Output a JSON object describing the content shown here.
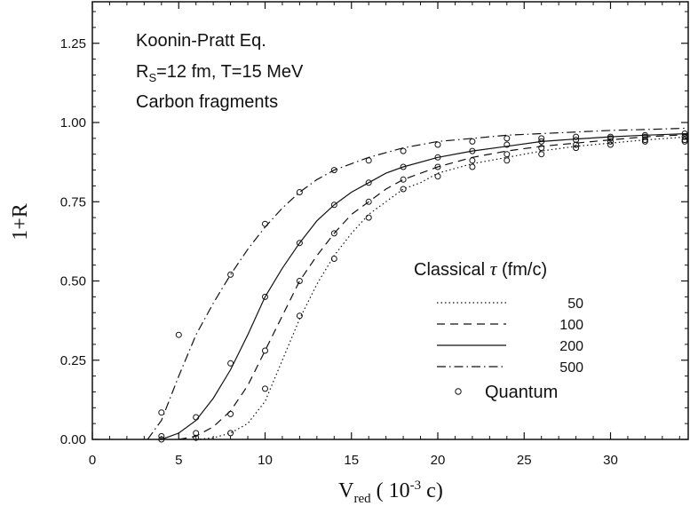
{
  "chart_data": {
    "type": "line",
    "title": "",
    "xlabel": "V",
    "xlabel_sub": "red",
    "xlabel_rest": "( 10",
    "xlabel_exp": "-3",
    "xlabel_tail": " c)",
    "ylabel": "1+R",
    "xlim": [
      0,
      34.5
    ],
    "ylim": [
      0,
      1.4
    ],
    "x_ticks": [
      0,
      5,
      10,
      15,
      20,
      25,
      30
    ],
    "x_tick_labels": [
      "0",
      "5",
      "10",
      "15",
      "20",
      "25",
      "30"
    ],
    "y_ticks": [
      0,
      0.25,
      0.5,
      0.75,
      1.0,
      1.25
    ],
    "y_tick_labels": [
      "0.00",
      "0.25",
      "0.50",
      "0.75",
      "1.00",
      "1.25"
    ],
    "grid": false,
    "annotation": {
      "line1": "Koonin-Pratt Eq.",
      "line2_prefix": "R",
      "line2_sub": "S",
      "line2_rest": "=12 fm, T=15 MeV",
      "line3": "Carbon fragments"
    },
    "legend": {
      "title_prefix": "Classical ",
      "title_symbol": "τ",
      "title_suffix": " (fm/c)",
      "placement": "lower-right",
      "quantum_label": "Quantum"
    },
    "series": [
      {
        "name": "50",
        "dash": "dotted",
        "x": [
          6,
          7,
          8,
          9,
          10,
          11,
          12,
          13,
          14,
          15,
          16,
          17,
          18,
          19,
          20,
          22,
          24,
          26,
          28,
          30,
          32,
          34.5
        ],
        "y": [
          0.0,
          0.005,
          0.02,
          0.05,
          0.12,
          0.25,
          0.38,
          0.49,
          0.58,
          0.65,
          0.71,
          0.75,
          0.79,
          0.81,
          0.84,
          0.87,
          0.89,
          0.91,
          0.925,
          0.935,
          0.945,
          0.955
        ]
      },
      {
        "name": "100",
        "dash": "dashed",
        "x": [
          5,
          6,
          7,
          8,
          9,
          10,
          11,
          12,
          13,
          14,
          15,
          16,
          17,
          18,
          20,
          22,
          24,
          26,
          28,
          30,
          32,
          34.5
        ],
        "y": [
          0.0,
          0.01,
          0.04,
          0.09,
          0.17,
          0.28,
          0.39,
          0.5,
          0.58,
          0.65,
          0.71,
          0.75,
          0.79,
          0.82,
          0.86,
          0.89,
          0.91,
          0.925,
          0.935,
          0.945,
          0.955,
          0.962
        ]
      },
      {
        "name": "200",
        "dash": "solid",
        "x": [
          4,
          5,
          6,
          7,
          8,
          9,
          10,
          11,
          12,
          13,
          14,
          15,
          16,
          17,
          18,
          20,
          22,
          24,
          26,
          28,
          30,
          32,
          34.5
        ],
        "y": [
          0.0,
          0.02,
          0.06,
          0.13,
          0.22,
          0.33,
          0.45,
          0.54,
          0.62,
          0.69,
          0.74,
          0.78,
          0.81,
          0.84,
          0.86,
          0.89,
          0.91,
          0.925,
          0.94,
          0.948,
          0.955,
          0.96,
          0.965
        ]
      },
      {
        "name": "500",
        "dash": "dashdot",
        "x": [
          3.2,
          4,
          5,
          6,
          7,
          8,
          9,
          10,
          11,
          12,
          13,
          14,
          15,
          16,
          18,
          20,
          22,
          24,
          26,
          28,
          30,
          32,
          34.5
        ],
        "y": [
          0.0,
          0.06,
          0.2,
          0.33,
          0.43,
          0.52,
          0.6,
          0.67,
          0.73,
          0.78,
          0.82,
          0.85,
          0.87,
          0.89,
          0.92,
          0.94,
          0.95,
          0.96,
          0.965,
          0.97,
          0.975,
          0.978,
          0.982
        ]
      }
    ],
    "quantum_points": [
      {
        "x": 4,
        "y": 0.085
      },
      {
        "x": 4,
        "y": 0.01
      },
      {
        "x": 4,
        "y": 0.0
      },
      {
        "x": 5,
        "y": 0.33
      },
      {
        "x": 6,
        "y": 0.07
      },
      {
        "x": 6,
        "y": 0.02
      },
      {
        "x": 6,
        "y": 0.005
      },
      {
        "x": 8,
        "y": 0.52
      },
      {
        "x": 8,
        "y": 0.24
      },
      {
        "x": 8,
        "y": 0.08
      },
      {
        "x": 8,
        "y": 0.02
      },
      {
        "x": 10,
        "y": 0.68
      },
      {
        "x": 10,
        "y": 0.45
      },
      {
        "x": 10,
        "y": 0.28
      },
      {
        "x": 10,
        "y": 0.16
      },
      {
        "x": 12,
        "y": 0.78
      },
      {
        "x": 12,
        "y": 0.62
      },
      {
        "x": 12,
        "y": 0.5
      },
      {
        "x": 12,
        "y": 0.39
      },
      {
        "x": 14,
        "y": 0.85
      },
      {
        "x": 14,
        "y": 0.74
      },
      {
        "x": 14,
        "y": 0.65
      },
      {
        "x": 14,
        "y": 0.57
      },
      {
        "x": 16,
        "y": 0.88
      },
      {
        "x": 16,
        "y": 0.81
      },
      {
        "x": 16,
        "y": 0.75
      },
      {
        "x": 16,
        "y": 0.7
      },
      {
        "x": 18,
        "y": 0.91
      },
      {
        "x": 18,
        "y": 0.86
      },
      {
        "x": 18,
        "y": 0.82
      },
      {
        "x": 18,
        "y": 0.79
      },
      {
        "x": 20,
        "y": 0.93
      },
      {
        "x": 20,
        "y": 0.89
      },
      {
        "x": 20,
        "y": 0.86
      },
      {
        "x": 20,
        "y": 0.83
      },
      {
        "x": 22,
        "y": 0.94
      },
      {
        "x": 22,
        "y": 0.91
      },
      {
        "x": 22,
        "y": 0.88
      },
      {
        "x": 22,
        "y": 0.86
      },
      {
        "x": 24,
        "y": 0.95
      },
      {
        "x": 24,
        "y": 0.93
      },
      {
        "x": 24,
        "y": 0.9
      },
      {
        "x": 24,
        "y": 0.88
      },
      {
        "x": 26,
        "y": 0.95
      },
      {
        "x": 26,
        "y": 0.94
      },
      {
        "x": 26,
        "y": 0.92
      },
      {
        "x": 26,
        "y": 0.9
      },
      {
        "x": 28,
        "y": 0.955
      },
      {
        "x": 28,
        "y": 0.945
      },
      {
        "x": 28,
        "y": 0.93
      },
      {
        "x": 28,
        "y": 0.92
      },
      {
        "x": 30,
        "y": 0.955
      },
      {
        "x": 30,
        "y": 0.95
      },
      {
        "x": 30,
        "y": 0.94
      },
      {
        "x": 30,
        "y": 0.93
      },
      {
        "x": 32,
        "y": 0.96
      },
      {
        "x": 32,
        "y": 0.955
      },
      {
        "x": 32,
        "y": 0.945
      },
      {
        "x": 32,
        "y": 0.94
      },
      {
        "x": 34.3,
        "y": 0.965
      },
      {
        "x": 34.3,
        "y": 0.955
      },
      {
        "x": 34.3,
        "y": 0.945
      },
      {
        "x": 34.3,
        "y": 0.94
      }
    ]
  }
}
